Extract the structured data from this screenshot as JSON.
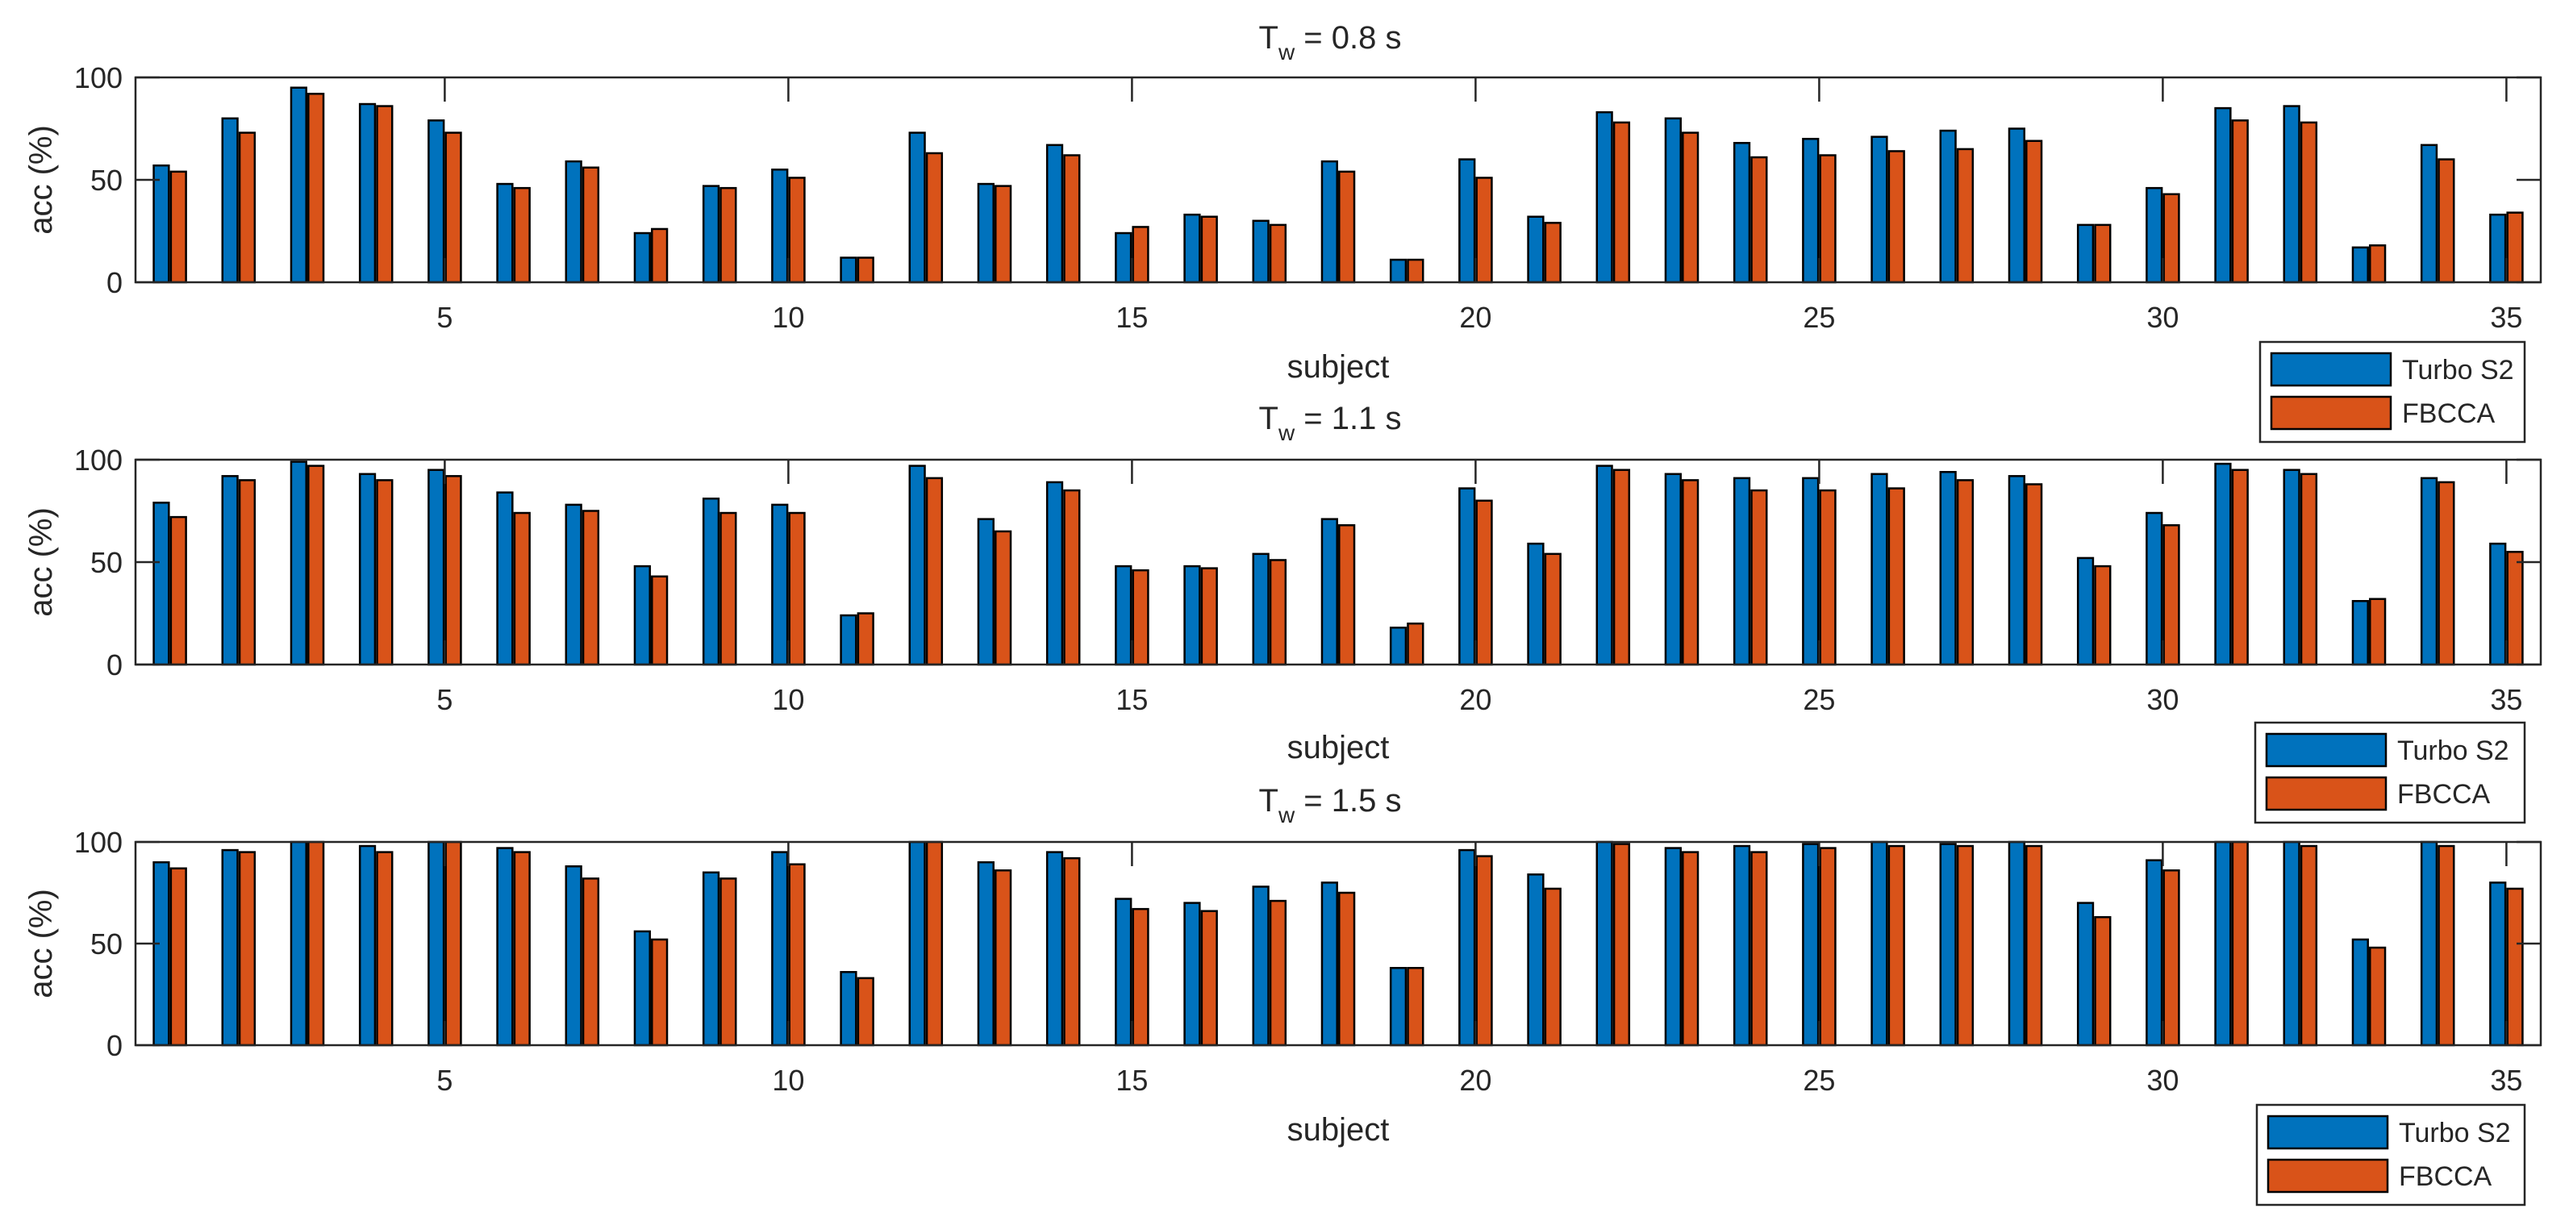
{
  "colors": {
    "turbo": "#0072BD",
    "fbcca": "#D95319",
    "axis": "#262626",
    "background": "#ffffff"
  },
  "chart_data": [
    {
      "type": "bar",
      "title": "T_w = 0.8 s",
      "title_main": "T",
      "title_sub": "w",
      "title_rest": " = 0.8 s",
      "xlabel": "subject",
      "ylabel": "acc (%)",
      "ylim": [
        0,
        100
      ],
      "yticks": [
        0,
        50,
        100
      ],
      "xticks": [
        5,
        10,
        15,
        20,
        25,
        30,
        35
      ],
      "categories": [
        1,
        2,
        3,
        4,
        5,
        6,
        7,
        8,
        9,
        10,
        11,
        12,
        13,
        14,
        15,
        16,
        17,
        18,
        19,
        20,
        21,
        22,
        23,
        24,
        25,
        26,
        27,
        28,
        29,
        30,
        31,
        32,
        33,
        34,
        35
      ],
      "legend": [
        "Turbo S2",
        "FBCCA"
      ],
      "legend_position": "bottom-right, outside",
      "series": [
        {
          "name": "Turbo S2",
          "values": [
            57,
            80,
            95,
            87,
            79,
            48,
            59,
            24,
            47,
            55,
            12,
            73,
            48,
            67,
            24,
            33,
            30,
            59,
            11,
            60,
            32,
            83,
            80,
            68,
            70,
            71,
            74,
            75,
            28,
            46,
            85,
            86,
            17,
            67,
            33
          ]
        },
        {
          "name": "FBCCA",
          "values": [
            54,
            73,
            92,
            86,
            73,
            46,
            56,
            26,
            46,
            51,
            12,
            63,
            47,
            62,
            27,
            32,
            28,
            54,
            11,
            51,
            29,
            78,
            73,
            61,
            62,
            64,
            65,
            69,
            28,
            43,
            79,
            78,
            18,
            60,
            34
          ]
        }
      ]
    },
    {
      "type": "bar",
      "title": "T_w = 1.1 s",
      "title_main": "T",
      "title_sub": "w",
      "title_rest": " = 1.1 s",
      "xlabel": "subject",
      "ylabel": "acc (%)",
      "ylim": [
        0,
        100
      ],
      "yticks": [
        0,
        50,
        100
      ],
      "xticks": [
        5,
        10,
        15,
        20,
        25,
        30,
        35
      ],
      "categories": [
        1,
        2,
        3,
        4,
        5,
        6,
        7,
        8,
        9,
        10,
        11,
        12,
        13,
        14,
        15,
        16,
        17,
        18,
        19,
        20,
        21,
        22,
        23,
        24,
        25,
        26,
        27,
        28,
        29,
        30,
        31,
        32,
        33,
        34,
        35
      ],
      "legend": [
        "Turbo S2",
        "FBCCA"
      ],
      "legend_position": "bottom-right, outside",
      "series": [
        {
          "name": "Turbo S2",
          "values": [
            79,
            92,
            99,
            93,
            95,
            84,
            78,
            48,
            81,
            78,
            24,
            97,
            71,
            89,
            48,
            48,
            54,
            71,
            18,
            86,
            59,
            97,
            93,
            91,
            91,
            93,
            94,
            92,
            52,
            74,
            98,
            95,
            31,
            91,
            59
          ]
        },
        {
          "name": "FBCCA",
          "values": [
            72,
            90,
            97,
            90,
            92,
            74,
            75,
            43,
            74,
            74,
            25,
            91,
            65,
            85,
            46,
            47,
            51,
            68,
            20,
            80,
            54,
            95,
            90,
            85,
            85,
            86,
            90,
            88,
            48,
            68,
            95,
            93,
            32,
            89,
            55
          ]
        }
      ]
    },
    {
      "type": "bar",
      "title": "T_w = 1.5 s",
      "title_main": "T",
      "title_sub": "w",
      "title_rest": " = 1.5 s",
      "xlabel": "subject",
      "ylabel": "acc (%)",
      "ylim": [
        0,
        100
      ],
      "yticks": [
        0,
        50,
        100
      ],
      "xticks": [
        5,
        10,
        15,
        20,
        25,
        30,
        35
      ],
      "categories": [
        1,
        2,
        3,
        4,
        5,
        6,
        7,
        8,
        9,
        10,
        11,
        12,
        13,
        14,
        15,
        16,
        17,
        18,
        19,
        20,
        21,
        22,
        23,
        24,
        25,
        26,
        27,
        28,
        29,
        30,
        31,
        32,
        33,
        34,
        35
      ],
      "legend": [
        "Turbo S2",
        "FBCCA"
      ],
      "legend_position": "bottom-right, outside",
      "series": [
        {
          "name": "Turbo S2",
          "values": [
            90,
            96,
            100,
            98,
            100,
            97,
            88,
            56,
            85,
            95,
            36,
            100,
            90,
            95,
            72,
            70,
            78,
            80,
            38,
            96,
            84,
            100,
            97,
            98,
            99,
            100,
            99,
            100,
            70,
            91,
            100,
            100,
            52,
            100,
            80
          ]
        },
        {
          "name": "FBCCA",
          "values": [
            87,
            95,
            100,
            95,
            100,
            95,
            82,
            52,
            82,
            89,
            33,
            100,
            86,
            92,
            67,
            66,
            71,
            75,
            38,
            93,
            77,
            99,
            95,
            95,
            97,
            98,
            98,
            98,
            63,
            86,
            100,
            98,
            48,
            98,
            77
          ]
        }
      ]
    }
  ]
}
